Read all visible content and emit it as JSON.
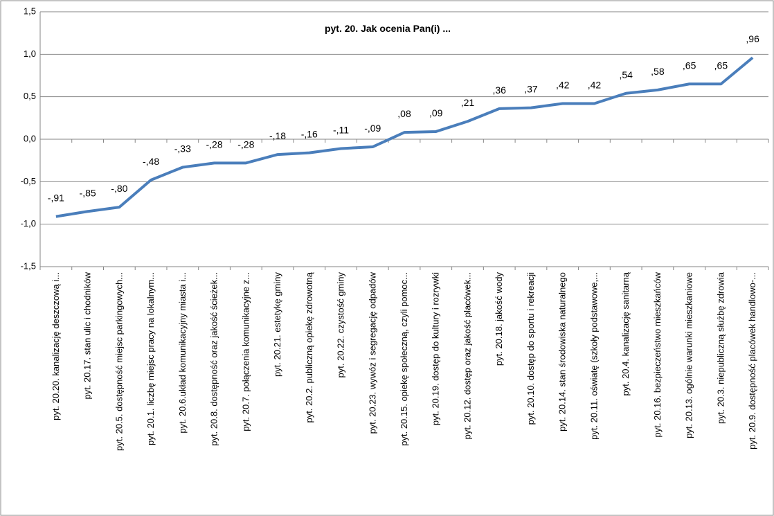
{
  "chart_data": {
    "type": "line",
    "title": "pyt. 20.  Jak ocenia  Pan(i) ...",
    "categories": [
      "pyt. 20.20. kanalizację deszczową i...",
      "pyt. 20.17. stan ulic i chodników",
      "pyt. 20.5. dostępność miejsc parkingowych...",
      "pyt. 20.1. liczbę miejsc pracy na lokalnym...",
      "pyt. 20.6.układ komunikacyjny miasta i...",
      "pyt. 20.8. dostępność oraz jakość ścieżek...",
      "pyt. 20.7. połączenia komunikacyjne z...",
      "pyt. 20.21. estetykę gminy",
      "pyt. 20.2. publiczną opiekę zdrowotną",
      "pyt. 20.22. czystość gminy",
      "pyt. 20.23. wywóz i segregację odpadów",
      "pyt. 20.15. opiekę społeczną, czyli pomoc...",
      "pyt. 20.19. dostęp do kultury i rozrywki",
      "pyt. 20.12. dostęp oraz jakość placówek...",
      "pyt. 20.18. jakość wody",
      "pyt. 20.10. dostęp do sportu i rekreacji",
      "pyt. 20.14. stan środowiska naturalnego",
      "pyt. 20.11. oświatę (szkoły podstawowe,...",
      "pyt. 20.4. kanalizację sanitarną",
      "pyt. 20.16. bezpieczeństwo mieszkańców",
      "pyt. 20.13. ogólnie warunki mieszkaniowe",
      "pyt. 20.3. niepubliczną służbę zdrowia",
      "pyt. 20.9. dostępność placówek handlowo-..."
    ],
    "values": [
      -0.91,
      -0.85,
      -0.8,
      -0.48,
      -0.33,
      -0.28,
      -0.28,
      -0.18,
      -0.16,
      -0.11,
      -0.09,
      0.08,
      0.09,
      0.21,
      0.36,
      0.37,
      0.42,
      0.42,
      0.54,
      0.58,
      0.65,
      0.65,
      0.96
    ],
    "value_labels": [
      "-,91",
      "-,85",
      "-,80",
      "-,48",
      "-,33",
      "-,28",
      "-,28",
      "-,18",
      "-,16",
      "-,11",
      "-,09",
      ",08",
      ",09",
      ",21",
      ",36",
      ",37",
      ",42",
      ",42",
      ",54",
      ",58",
      ",65",
      ",65",
      ",96"
    ],
    "color": "#4a7ebb",
    "ylim": [
      -1.5,
      1.5
    ],
    "yticks": [
      {
        "value": -1.5,
        "label": "-1,5"
      },
      {
        "value": -1.0,
        "label": "-1,0"
      },
      {
        "value": -0.5,
        "label": "-0,5"
      },
      {
        "value": 0,
        "label": "0,0"
      },
      {
        "value": 0.5,
        "label": "0,5"
      },
      {
        "value": 1.0,
        "label": "1,0"
      },
      {
        "value": 1.5,
        "label": "1,5"
      }
    ],
    "grid": true
  }
}
